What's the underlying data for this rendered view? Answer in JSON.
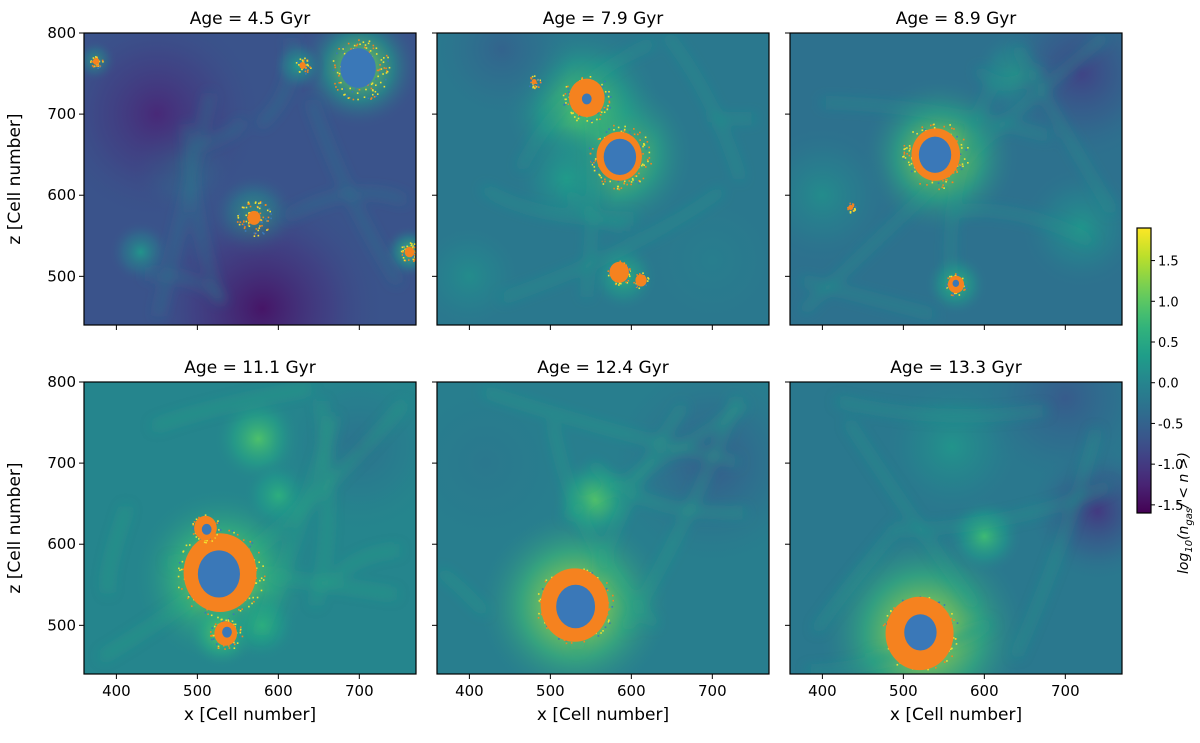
{
  "chart_data": {
    "type": "heatmap",
    "layout": {
      "rows": 2,
      "cols": 3,
      "sharex": true,
      "sharey": true
    },
    "xlabel": "x [Cell number]",
    "ylabel": "z [Cell number]",
    "xlim": [
      360,
      770
    ],
    "ylim": [
      440,
      800
    ],
    "xticks": [
      400,
      500,
      600,
      700
    ],
    "yticks": [
      500,
      600,
      700,
      800
    ],
    "colormap": "viridis",
    "colorbar": {
      "label_base": "log",
      "label_base_sub": "10",
      "label_open": "(n",
      "label_sub": "gas",
      "label_close": "/ < n >)",
      "range": [
        -1.6,
        1.9
      ],
      "ticks": [
        "-1.5",
        "-1.0",
        "-0.5",
        "0.0",
        "0.5",
        "1.0",
        "1.5"
      ],
      "tick_values": [
        -1.5,
        -1.0,
        -0.5,
        0.0,
        0.5,
        1.0,
        1.5
      ]
    },
    "overlay_colors": {
      "blue": "#3a78b8",
      "orange": "#f5821f",
      "yellow": "#f2e030"
    },
    "panels": [
      {
        "title": "Age = 4.5 Gyr",
        "base": -0.7,
        "blobs": [
          {
            "x": 700,
            "y": 758,
            "v": 1.3,
            "s": 35
          },
          {
            "x": 570,
            "y": 572,
            "v": 0.7,
            "s": 25
          },
          {
            "x": 762,
            "y": 530,
            "v": 0.8,
            "s": 15
          },
          {
            "x": 375,
            "y": 765,
            "v": 0.6,
            "s": 12
          },
          {
            "x": 625,
            "y": 760,
            "v": 0.4,
            "s": 15
          },
          {
            "x": 430,
            "y": 530,
            "v": 0.2,
            "s": 18
          },
          {
            "x": 480,
            "y": 640,
            "v": 0.0,
            "s": 30
          },
          {
            "x": 580,
            "y": 460,
            "v": -1.4,
            "s": 70
          },
          {
            "x": 450,
            "y": 700,
            "v": -1.2,
            "s": 60
          }
        ],
        "cores": [
          {
            "x": 700,
            "y": 755,
            "blue": 22,
            "orange": 0,
            "speckle": 38
          },
          {
            "x": 570,
            "y": 572,
            "blue": 0,
            "orange": 8,
            "speckle": 22
          },
          {
            "x": 762,
            "y": 530,
            "blue": 0,
            "orange": 6,
            "speckle": 12
          },
          {
            "x": 375,
            "y": 765,
            "blue": 0,
            "orange": 4,
            "speckle": 8
          },
          {
            "x": 630,
            "y": 760,
            "blue": 0,
            "orange": 4,
            "speckle": 10
          }
        ]
      },
      {
        "title": "Age = 7.9 Gyr",
        "base": -0.2,
        "blobs": [
          {
            "x": 580,
            "y": 650,
            "v": 1.3,
            "s": 45
          },
          {
            "x": 540,
            "y": 710,
            "v": 1.0,
            "s": 45
          },
          {
            "x": 590,
            "y": 500,
            "v": 0.6,
            "s": 20
          },
          {
            "x": 520,
            "y": 620,
            "v": 0.3,
            "s": 30
          },
          {
            "x": 400,
            "y": 500,
            "v": 0.1,
            "s": 30
          },
          {
            "x": 700,
            "y": 520,
            "v": -0.1,
            "s": 40
          },
          {
            "x": 440,
            "y": 780,
            "v": -0.5,
            "s": 40
          }
        ],
        "cores": [
          {
            "x": 585,
            "y": 648,
            "blue": 20,
            "orange": 28,
            "speckle": 40
          },
          {
            "x": 545,
            "y": 720,
            "blue": 6,
            "orange": 22,
            "speckle": 30
          },
          {
            "x": 585,
            "y": 505,
            "blue": 0,
            "orange": 12,
            "speckle": 15
          },
          {
            "x": 612,
            "y": 495,
            "blue": 0,
            "orange": 7,
            "speckle": 10
          },
          {
            "x": 480,
            "y": 740,
            "blue": 0,
            "orange": 3,
            "speckle": 8
          }
        ]
      },
      {
        "title": "Age = 8.9 Gyr",
        "base": -0.3,
        "blobs": [
          {
            "x": 545,
            "y": 648,
            "v": 1.5,
            "s": 45
          },
          {
            "x": 565,
            "y": 490,
            "v": 0.7,
            "s": 18
          },
          {
            "x": 640,
            "y": 750,
            "v": 0.4,
            "s": 25
          },
          {
            "x": 720,
            "y": 560,
            "v": 0.2,
            "s": 35
          },
          {
            "x": 400,
            "y": 600,
            "v": 0.1,
            "s": 40
          },
          {
            "x": 720,
            "y": 750,
            "v": -0.9,
            "s": 50
          }
        ],
        "cores": [
          {
            "x": 540,
            "y": 650,
            "blue": 20,
            "orange": 30,
            "speckle": 42
          },
          {
            "x": 565,
            "y": 490,
            "blue": 4,
            "orange": 10,
            "speckle": 14
          },
          {
            "x": 435,
            "y": 585,
            "blue": 0,
            "orange": 3,
            "speckle": 6
          }
        ]
      },
      {
        "title": "Age = 11.1 Gyr",
        "base": 0.0,
        "blobs": [
          {
            "x": 530,
            "y": 560,
            "v": 1.5,
            "s": 50
          },
          {
            "x": 575,
            "y": 730,
            "v": 0.9,
            "s": 25
          },
          {
            "x": 600,
            "y": 660,
            "v": 0.6,
            "s": 20
          },
          {
            "x": 530,
            "y": 490,
            "v": 1.0,
            "s": 20
          },
          {
            "x": 580,
            "y": 500,
            "v": 0.6,
            "s": 20
          },
          {
            "x": 700,
            "y": 720,
            "v": -0.3,
            "s": 50
          }
        ],
        "cores": [
          {
            "x": 528,
            "y": 565,
            "blue": 26,
            "orange": 45,
            "speckle": 55
          },
          {
            "x": 535,
            "y": 490,
            "blue": 6,
            "orange": 14,
            "speckle": 20
          },
          {
            "x": 510,
            "y": 620,
            "blue": 6,
            "orange": 14,
            "speckle": 18
          }
        ]
      },
      {
        "title": "Age = 12.4 Gyr",
        "base": -0.1,
        "blobs": [
          {
            "x": 530,
            "y": 525,
            "v": 1.7,
            "s": 55
          },
          {
            "x": 555,
            "y": 655,
            "v": 1.0,
            "s": 25
          },
          {
            "x": 700,
            "y": 700,
            "v": -0.6,
            "s": 60
          },
          {
            "x": 420,
            "y": 700,
            "v": -0.2,
            "s": 50
          }
        ],
        "cores": [
          {
            "x": 530,
            "y": 525,
            "blue": 24,
            "orange": 42,
            "speckle": 48
          }
        ]
      },
      {
        "title": "Age = 13.3 Gyr",
        "base": -0.2,
        "blobs": [
          {
            "x": 525,
            "y": 490,
            "v": 1.7,
            "s": 60
          },
          {
            "x": 600,
            "y": 610,
            "v": 0.8,
            "s": 22
          },
          {
            "x": 560,
            "y": 720,
            "v": 0.2,
            "s": 40
          },
          {
            "x": 740,
            "y": 640,
            "v": -1.0,
            "s": 40
          },
          {
            "x": 700,
            "y": 780,
            "v": -0.6,
            "s": 50
          }
        ],
        "cores": [
          {
            "x": 520,
            "y": 490,
            "blue": 20,
            "orange": 42,
            "speckle": 48
          }
        ]
      }
    ]
  }
}
